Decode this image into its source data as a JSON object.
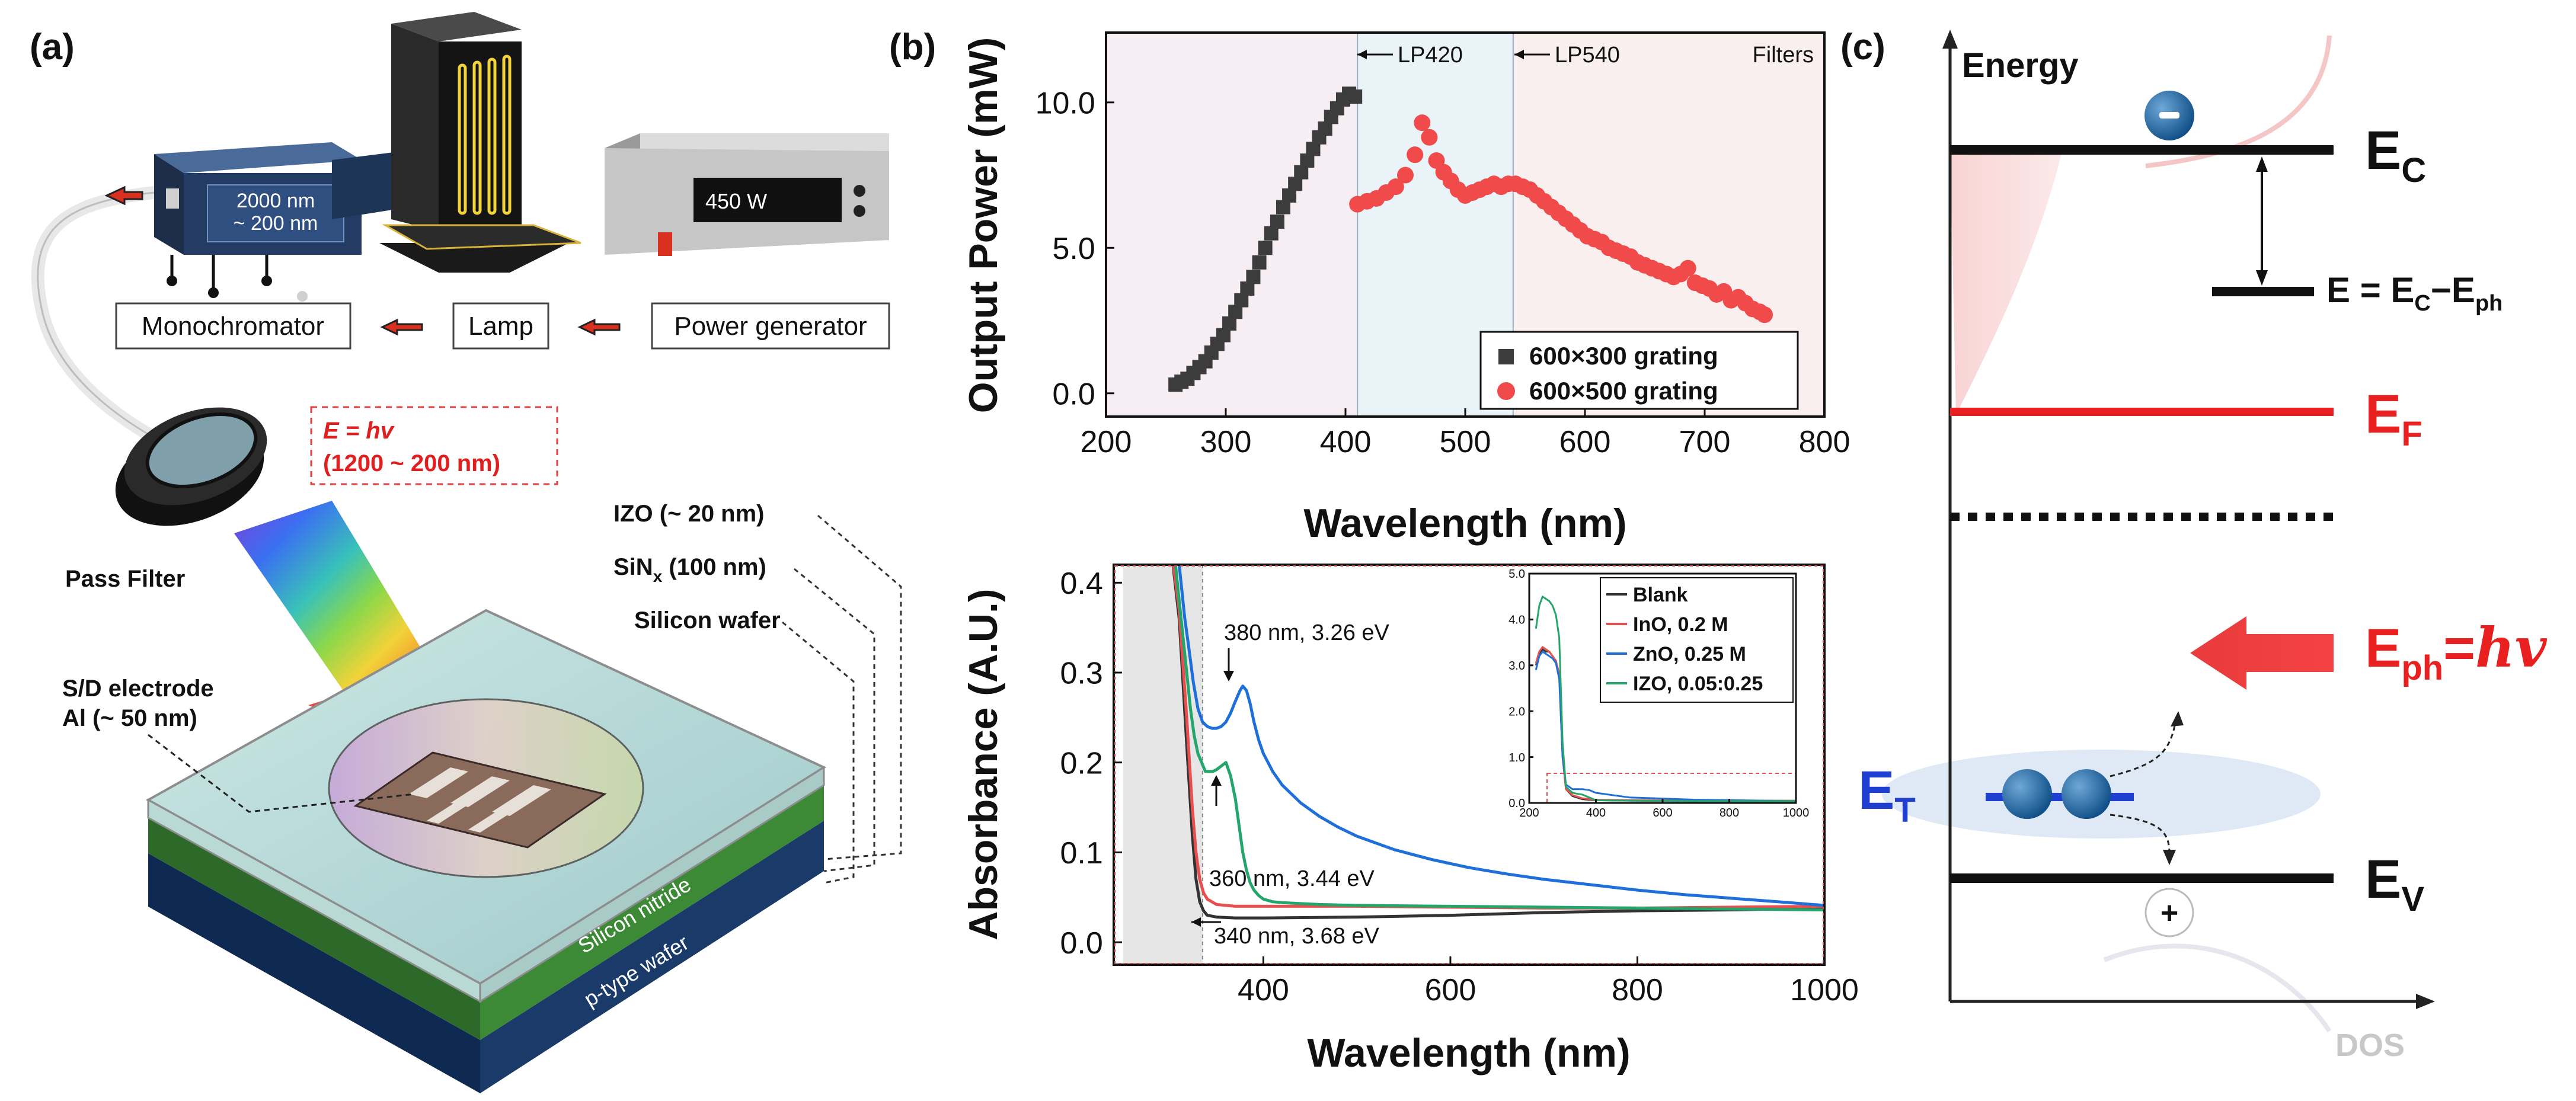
{
  "panels": {
    "a": {
      "label": "(a)",
      "components": {
        "monochromator": "Monochromator",
        "lamp": "Lamp",
        "power_generator": "Power generator"
      },
      "mono_display": [
        "2000 nm",
        "~ 200 nm"
      ],
      "power_display": "450 W",
      "energy_formula": "E = hv",
      "energy_range": "(1200 ~ 200 nm)",
      "pass_filter": "Pass Filter",
      "layers": {
        "izo": "IZO (~ 20 nm)",
        "sinx": "SiNx (100 nm)",
        "wafer": "Silicon wafer",
        "electrode_line1": "S/D electrode",
        "electrode_line2": "Al (~ 50 nm)",
        "silicon_nitride": "Silicon nitride",
        "ptype": "p-type wafer"
      }
    },
    "b": {
      "label": "(b)"
    },
    "c": {
      "label": "(c)",
      "energy_axis": "Energy",
      "dos_axis": "DOS",
      "levels": {
        "ec": "Ec",
        "e_eq": "E = Ec−Eph",
        "ef": "EF",
        "eph": "Eph=hv",
        "et": "ET",
        "ev": "EV"
      },
      "electron_symbol": "−",
      "hole_symbol": "+"
    }
  },
  "chart_data": [
    {
      "type": "scatter",
      "title": "",
      "xlabel": "Wavelength (nm)",
      "ylabel": "Output Power (mW)",
      "xlim": [
        200,
        800
      ],
      "ylim": [
        -0.8,
        12.4
      ],
      "xticks": [
        200,
        300,
        400,
        500,
        600,
        700,
        800
      ],
      "yticks": [
        0.0,
        5.0,
        10.0
      ],
      "xtick_labels": [
        "200",
        "300",
        "400",
        "500",
        "600",
        "700",
        "800"
      ],
      "ytick_labels": [
        "0.0",
        "5.0",
        "10.0"
      ],
      "filter_regions": [
        {
          "name": "",
          "x0": 200,
          "x1": 410,
          "color": "#f6eef3"
        },
        {
          "name": "LP420",
          "x0": 410,
          "x1": 540,
          "color": "#eaf3f8"
        },
        {
          "name": "LP540",
          "x0": 540,
          "x1": 800,
          "color": "#faefef"
        }
      ],
      "filters_label": "Filters",
      "series": [
        {
          "name": "600×300 grating",
          "color": "#3c3c3c",
          "marker": "square",
          "x": [
            258,
            263,
            268,
            273,
            278,
            283,
            288,
            293,
            298,
            303,
            308,
            313,
            318,
            323,
            328,
            333,
            338,
            343,
            348,
            353,
            358,
            363,
            368,
            373,
            378,
            383,
            388,
            393,
            398,
            403,
            408
          ],
          "y": [
            0.3,
            0.4,
            0.5,
            0.7,
            0.9,
            1.1,
            1.4,
            1.7,
            2.0,
            2.4,
            2.8,
            3.2,
            3.6,
            4.0,
            4.5,
            5.0,
            5.5,
            5.9,
            6.4,
            6.8,
            7.2,
            7.6,
            8.0,
            8.4,
            8.8,
            9.1,
            9.5,
            9.8,
            10.1,
            10.3,
            10.2
          ]
        },
        {
          "name": "600×500 grating",
          "color": "#f04a4a",
          "marker": "circle",
          "x": [
            410,
            418,
            426,
            434,
            442,
            450,
            458,
            464,
            470,
            476,
            482,
            488,
            494,
            500,
            506,
            512,
            518,
            524,
            530,
            536,
            542,
            548,
            554,
            560,
            566,
            572,
            578,
            584,
            590,
            596,
            602,
            608,
            614,
            620,
            626,
            632,
            638,
            644,
            650,
            656,
            662,
            668,
            674,
            680,
            686,
            692,
            698,
            704,
            710,
            716,
            722,
            728,
            734,
            740,
            746,
            750
          ],
          "y": [
            6.5,
            6.6,
            6.7,
            6.9,
            7.1,
            7.5,
            8.2,
            9.3,
            8.8,
            8.0,
            7.6,
            7.3,
            7.0,
            6.8,
            6.9,
            7.0,
            7.1,
            7.2,
            7.1,
            7.2,
            7.2,
            7.1,
            7.0,
            6.8,
            6.6,
            6.4,
            6.2,
            6.0,
            5.8,
            5.6,
            5.4,
            5.3,
            5.2,
            5.0,
            4.9,
            4.8,
            4.7,
            4.5,
            4.4,
            4.3,
            4.2,
            4.1,
            4.0,
            4.1,
            4.3,
            3.8,
            3.7,
            3.6,
            3.4,
            3.5,
            3.2,
            3.3,
            3.1,
            2.9,
            2.8,
            2.7
          ]
        }
      ]
    },
    {
      "type": "line",
      "title": "",
      "xlabel": "Wavelength (nm)",
      "ylabel": "Absorbance (A.U.)",
      "xlim": [
        240,
        1000
      ],
      "ylim": [
        -0.025,
        0.42
      ],
      "xticks": [
        400,
        600,
        800,
        1000
      ],
      "yticks": [
        0.0,
        0.1,
        0.2,
        0.3,
        0.4
      ],
      "xtick_labels": [
        "400",
        "600",
        "800",
        "1000"
      ],
      "ytick_labels": [
        "0.0",
        "0.1",
        "0.2",
        "0.3",
        "0.4"
      ],
      "shaded_region": [
        250,
        335
      ],
      "annotations": [
        "380 nm, 3.26 eV",
        "360 nm, 3.44 eV",
        "340 nm, 3.68 eV"
      ],
      "series": [
        {
          "name": "Blank",
          "color": "#333333",
          "x": [
            300,
            310,
            318,
            324,
            328,
            332,
            336,
            340,
            350,
            370,
            400,
            500,
            600,
            700,
            800,
            900,
            1000
          ],
          "y": [
            0.45,
            0.36,
            0.22,
            0.12,
            0.07,
            0.045,
            0.035,
            0.03,
            0.028,
            0.027,
            0.027,
            0.028,
            0.03,
            0.033,
            0.035,
            0.036,
            0.038
          ]
        },
        {
          "name": "InO, 0.2 M",
          "color": "#e8504f",
          "x": [
            300,
            310,
            318,
            324,
            328,
            332,
            336,
            340,
            350,
            370,
            400,
            500,
            600,
            700,
            800,
            900,
            1000
          ],
          "y": [
            0.45,
            0.37,
            0.25,
            0.15,
            0.1,
            0.07,
            0.055,
            0.048,
            0.042,
            0.04,
            0.04,
            0.04,
            0.039,
            0.038,
            0.038,
            0.039,
            0.04
          ]
        },
        {
          "name": "ZnO, 0.25 M",
          "color": "#1e6fd9",
          "x": [
            300,
            310,
            316,
            320,
            325,
            330,
            335,
            340,
            345,
            350,
            355,
            360,
            365,
            370,
            375,
            378,
            382,
            386,
            390,
            395,
            400,
            410,
            420,
            440,
            460,
            480,
            500,
            540,
            580,
            620,
            660,
            700,
            750,
            800,
            850,
            900,
            950,
            1000
          ],
          "y": [
            0.5,
            0.42,
            0.36,
            0.33,
            0.29,
            0.26,
            0.245,
            0.24,
            0.238,
            0.238,
            0.24,
            0.245,
            0.255,
            0.268,
            0.28,
            0.285,
            0.28,
            0.265,
            0.245,
            0.225,
            0.21,
            0.19,
            0.175,
            0.155,
            0.14,
            0.128,
            0.118,
            0.103,
            0.092,
            0.083,
            0.076,
            0.07,
            0.064,
            0.058,
            0.053,
            0.049,
            0.045,
            0.041
          ]
        },
        {
          "name": "IZO, 0.05:0.25",
          "color": "#24a56b",
          "x": [
            300,
            310,
            318,
            322,
            326,
            330,
            334,
            338,
            342,
            346,
            350,
            355,
            360,
            365,
            370,
            374,
            378,
            382,
            386,
            390,
            395,
            400,
            410,
            420,
            440,
            460,
            500,
            600,
            700,
            800,
            900,
            1000
          ],
          "y": [
            0.48,
            0.38,
            0.3,
            0.26,
            0.23,
            0.21,
            0.2,
            0.19,
            0.19,
            0.19,
            0.192,
            0.196,
            0.2,
            0.185,
            0.16,
            0.13,
            0.1,
            0.08,
            0.066,
            0.058,
            0.052,
            0.048,
            0.045,
            0.044,
            0.043,
            0.042,
            0.041,
            0.04,
            0.039,
            0.038,
            0.037,
            0.036
          ]
        }
      ]
    },
    {
      "type": "line",
      "title": "",
      "xlabel": "",
      "ylabel": "",
      "xlim": [
        200,
        1000
      ],
      "ylim": [
        0,
        5
      ],
      "xticks": [
        200,
        400,
        600,
        800,
        1000
      ],
      "yticks": [
        0.0,
        1.0,
        2.0,
        3.0,
        4.0,
        5.0
      ],
      "xtick_labels": [
        "200",
        "400",
        "600",
        "800",
        "1000"
      ],
      "ytick_labels": [
        "0.0",
        "1.0",
        "2.0",
        "3.0",
        "4.0",
        "5.0"
      ],
      "series": [
        {
          "name": "Blank",
          "color": "#333333",
          "x": [
            220,
            230,
            240,
            250,
            260,
            270,
            280,
            290,
            300,
            310,
            330,
            360,
            400,
            500,
            700,
            1000
          ],
          "y": [
            3.0,
            3.25,
            3.35,
            3.3,
            3.3,
            3.2,
            3.1,
            2.8,
            1.0,
            0.3,
            0.15,
            0.08,
            0.06,
            0.05,
            0.04,
            0.04
          ]
        },
        {
          "name": "InO, 0.2 M",
          "color": "#e8504f",
          "x": [
            220,
            230,
            240,
            250,
            260,
            270,
            280,
            290,
            300,
            310,
            330,
            360,
            400,
            500,
            700,
            1000
          ],
          "y": [
            3.05,
            3.3,
            3.4,
            3.35,
            3.3,
            3.2,
            3.1,
            2.8,
            1.0,
            0.3,
            0.17,
            0.1,
            0.07,
            0.06,
            0.05,
            0.05
          ]
        },
        {
          "name": "ZnO, 0.25 M",
          "color": "#1e6fd9",
          "x": [
            220,
            230,
            240,
            250,
            260,
            270,
            280,
            290,
            300,
            310,
            330,
            360,
            380,
            400,
            500,
            700,
            1000
          ],
          "y": [
            2.9,
            3.2,
            3.3,
            3.25,
            3.2,
            3.15,
            3.05,
            2.7,
            1.0,
            0.4,
            0.3,
            0.3,
            0.28,
            0.22,
            0.12,
            0.07,
            0.04
          ]
        },
        {
          "name": "IZO, 0.05:0.25",
          "color": "#24a56b",
          "x": [
            220,
            230,
            240,
            250,
            260,
            270,
            280,
            290,
            300,
            310,
            330,
            360,
            400,
            500,
            700,
            1000
          ],
          "y": [
            3.8,
            4.3,
            4.5,
            4.45,
            4.4,
            4.3,
            4.1,
            3.6,
            1.3,
            0.35,
            0.22,
            0.18,
            0.06,
            0.05,
            0.04,
            0.04
          ]
        }
      ]
    }
  ]
}
